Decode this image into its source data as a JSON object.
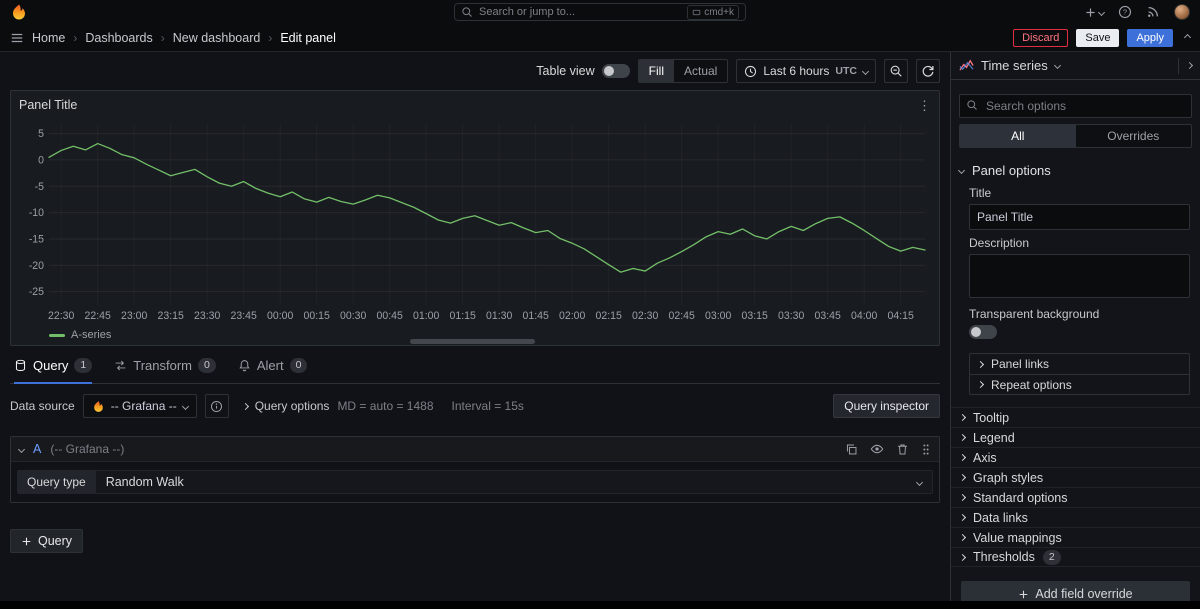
{
  "nav": {
    "search_placeholder": "Search or jump to...",
    "search_shortcut": "cmd+k",
    "breadcrumbs": [
      "Home",
      "Dashboards",
      "New dashboard",
      "Edit panel"
    ],
    "discard_label": "Discard",
    "save_label": "Save",
    "apply_label": "Apply"
  },
  "toolbar": {
    "table_view_label": "Table view",
    "fill_label": "Fill",
    "actual_label": "Actual",
    "time_range_label": "Last 6 hours",
    "timezone_label": "UTC"
  },
  "panel": {
    "title": "Panel Title",
    "legend_label": "A-series"
  },
  "chart_data": {
    "type": "line",
    "title": "Panel Title",
    "grid": true,
    "legend_position": "bottom-left",
    "x_ticks": [
      "22:30",
      "22:45",
      "23:00",
      "23:15",
      "23:30",
      "23:45",
      "00:00",
      "00:15",
      "00:30",
      "00:45",
      "01:00",
      "01:15",
      "01:30",
      "01:45",
      "02:00",
      "02:15",
      "02:30",
      "02:45",
      "03:00",
      "03:15",
      "03:30",
      "03:45",
      "04:00",
      "04:15"
    ],
    "x_tick_minutes": [
      5,
      20,
      35,
      50,
      65,
      80,
      95,
      110,
      125,
      140,
      155,
      170,
      185,
      200,
      215,
      230,
      245,
      260,
      275,
      290,
      305,
      320,
      335,
      350
    ],
    "x_total_min": 360,
    "y_ticks": [
      5,
      0,
      -5,
      -10,
      -15,
      -20,
      -25
    ],
    "ylim": [
      -27.5,
      7
    ],
    "series": [
      {
        "name": "A-series",
        "color": "#73bf69",
        "values": [
          0.5,
          1.8,
          2.6,
          1.9,
          3.1,
          2.2,
          1.0,
          0.4,
          -0.8,
          -1.9,
          -3.0,
          -2.4,
          -1.8,
          -3.2,
          -4.4,
          -5.0,
          -4.1,
          -5.4,
          -6.3,
          -7.0,
          -6.1,
          -7.4,
          -8.0,
          -7.1,
          -7.9,
          -8.4,
          -7.6,
          -6.7,
          -7.2,
          -8.1,
          -9.0,
          -10.2,
          -11.4,
          -12.0,
          -11.1,
          -10.6,
          -11.5,
          -12.4,
          -11.9,
          -12.9,
          -13.8,
          -13.4,
          -14.9,
          -15.8,
          -16.9,
          -18.4,
          -19.9,
          -21.3,
          -20.6,
          -21.1,
          -19.6,
          -18.6,
          -17.4,
          -16.1,
          -14.6,
          -13.6,
          -14.1,
          -13.1,
          -14.4,
          -15.0,
          -13.6,
          -12.6,
          -13.4,
          -12.1,
          -11.1,
          -10.8,
          -12.0,
          -13.4,
          -14.9,
          -16.4,
          -17.3,
          -16.6,
          -17.1
        ]
      }
    ]
  },
  "tabs": [
    {
      "label": "Query",
      "count": "1"
    },
    {
      "label": "Transform",
      "count": "0"
    },
    {
      "label": "Alert",
      "count": "0"
    }
  ],
  "query": {
    "datasource_label": "Data source",
    "datasource_value": "-- Grafana --",
    "options_toggle_label": "Query options",
    "options_summary_md": "MD = auto = 1488",
    "options_summary_interval": "Interval = 15s",
    "inspector_button_label": "Query inspector",
    "row": {
      "ref": "A",
      "datasource": "(-- Grafana --)"
    },
    "query_type_label": "Query type",
    "query_type_value": "Random Walk",
    "add_query_label": "Query"
  },
  "options_pane": {
    "viz_name": "Time series",
    "search_placeholder": "Search options",
    "filter_all_label": "All",
    "filter_overrides_label": "Overrides",
    "panel_options_header": "Panel options",
    "title_field_label": "Title",
    "title_field_value": "Panel Title",
    "description_field_label": "Description",
    "transparent_bg_label": "Transparent background",
    "panel_links_label": "Panel links",
    "repeat_options_label": "Repeat options",
    "categories": [
      {
        "label": "Tooltip"
      },
      {
        "label": "Legend"
      },
      {
        "label": "Axis"
      },
      {
        "label": "Graph styles"
      },
      {
        "label": "Standard options"
      },
      {
        "label": "Data links"
      },
      {
        "label": "Value mappings"
      },
      {
        "label": "Thresholds",
        "badge": "2"
      }
    ],
    "add_override_label": "Add field override"
  },
  "colors": {
    "accent_blue": "#3d71d9",
    "series_green": "#73bf69",
    "discard_red": "#e02f44"
  }
}
